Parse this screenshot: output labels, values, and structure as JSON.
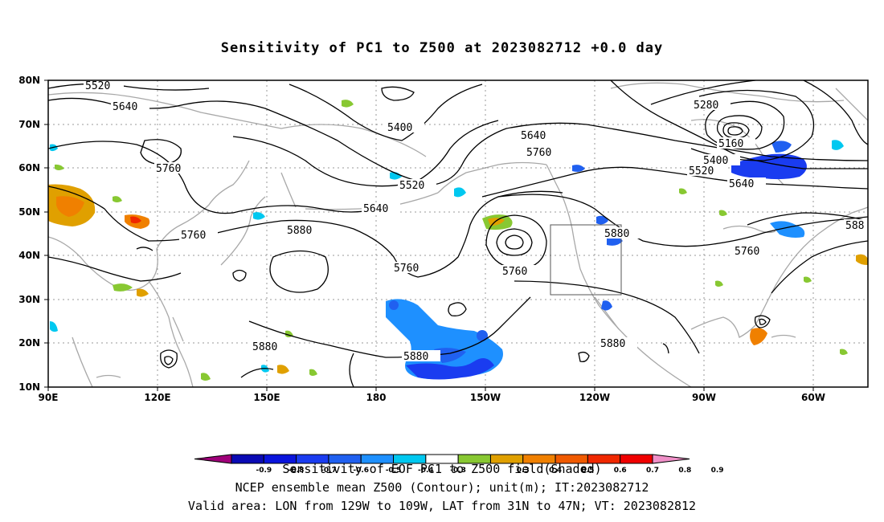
{
  "title": "Sensitivity of PC1 to Z500 at 2023082712 +0.0 day",
  "lat_labels": [
    "80N",
    "70N",
    "60N",
    "50N",
    "40N",
    "30N",
    "20N",
    "10N"
  ],
  "lon_labels": [
    "90E",
    "120E",
    "150E",
    "180",
    "150W",
    "120W",
    "90W",
    "60W"
  ],
  "contour_labels": [
    "5520",
    "5640",
    "5760",
    "5400",
    "5520",
    "5640",
    "5760",
    "5880",
    "5640",
    "5760",
    "5880",
    "5760",
    "5760",
    "5880",
    "5880",
    "5880",
    "5280",
    "5160",
    "5400",
    "5520",
    "5640",
    "5760",
    "588"
  ],
  "colorbar": {
    "labels": [
      "-0.9",
      "-0.8",
      "-0.7",
      "-0.6",
      "-0.5",
      "-0.4",
      "-0.3",
      "0.3",
      "0.4",
      "0.5",
      "0.6",
      "0.7",
      "0.8",
      "0.9"
    ],
    "colors": [
      "#a0007a",
      "#0a0ab4",
      "#0a14dc",
      "#1a3cf0",
      "#2060f0",
      "#1e90ff",
      "#00c8f0",
      "#ffffff",
      "#88c832",
      "#e0a000",
      "#f08000",
      "#f05a00",
      "#f02800",
      "#f00000",
      "#f090c8"
    ]
  },
  "captions": {
    "line1": "Sensitivity of EOF PC1 to Z500 field(Shaded)",
    "line2": "NCEP ensemble mean Z500 (Contour); unit(m); IT:2023082712",
    "line3": "Valid area: LON from 129W to 109W, LAT from 31N to 47N; VT: 2023082812"
  }
}
